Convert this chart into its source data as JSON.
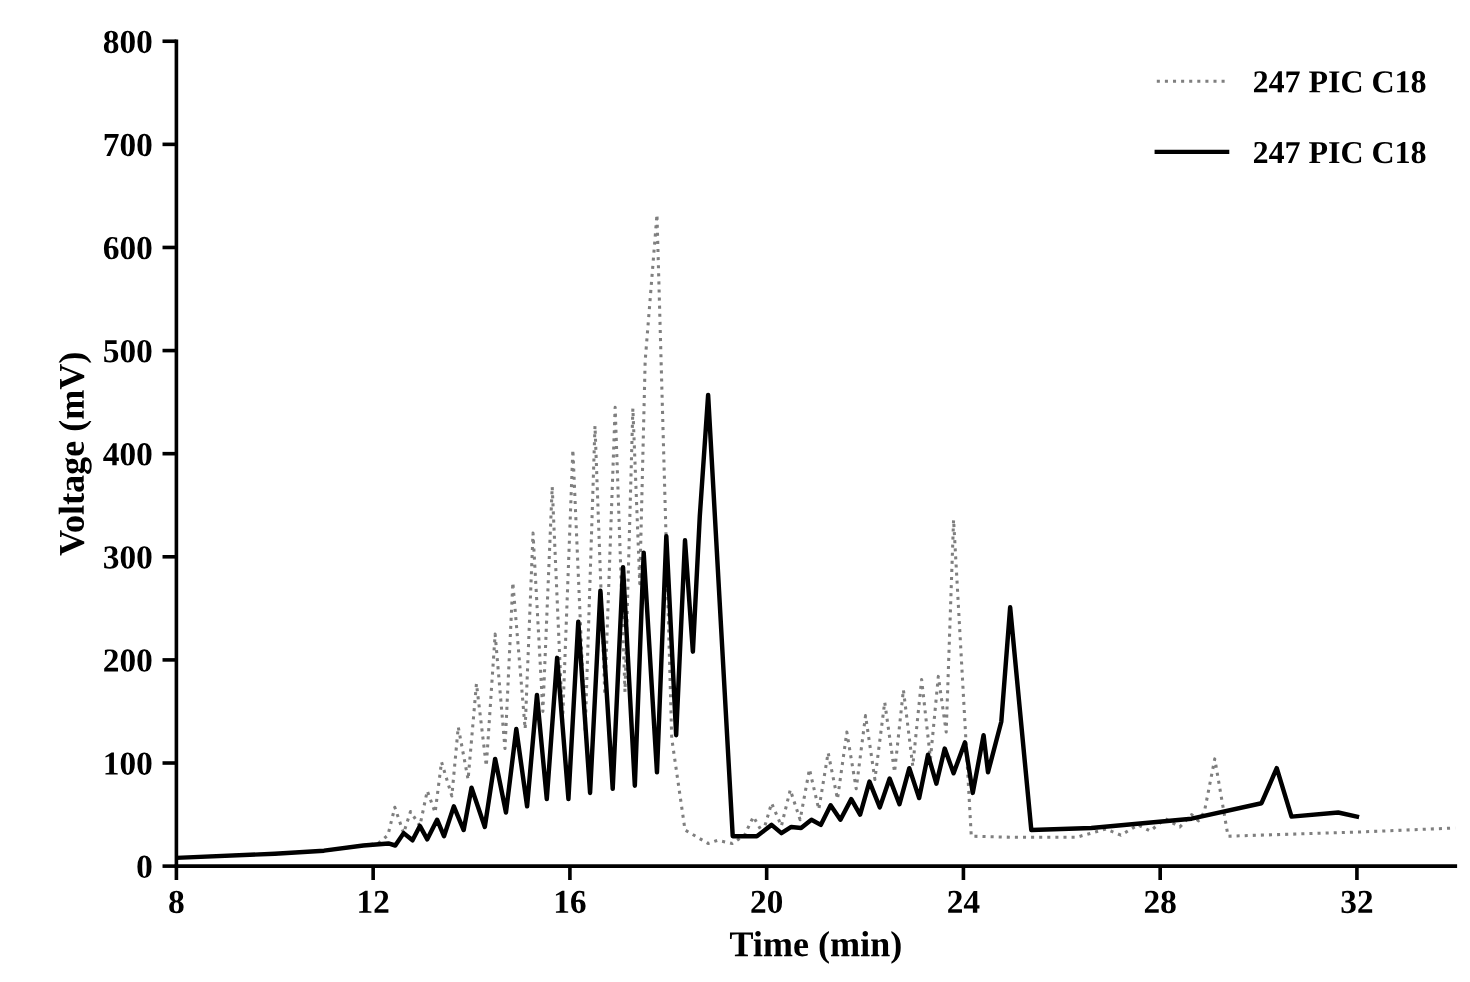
{
  "chart_data": {
    "type": "line",
    "xlabel": "Time (min)",
    "ylabel": "Voltage (mV)",
    "xlim": [
      8,
      34
    ],
    "ylim": [
      0,
      800
    ],
    "xticks": [
      8,
      12,
      16,
      20,
      24,
      28,
      32
    ],
    "yticks": [
      0,
      100,
      200,
      300,
      400,
      500,
      600,
      700,
      800
    ],
    "grid": false,
    "legend": "top right",
    "marker": "none",
    "series": [
      {
        "name": "247 PIC C18",
        "color": "#7f7f7f",
        "line_style": "dotted",
        "x": [
          8,
          10,
          11,
          11.8,
          12.1,
          12.3,
          12.44,
          12.62,
          12.76,
          12.95,
          13.1,
          13.26,
          13.39,
          13.6,
          13.73,
          13.93,
          14.1,
          14.3,
          14.48,
          14.68,
          14.84,
          15.09,
          15.25,
          15.45,
          15.64,
          15.85,
          16.06,
          16.31,
          16.51,
          16.71,
          16.92,
          17.12,
          17.28,
          17.42,
          17.53,
          17.77,
          18.07,
          18.34,
          18.81,
          19.0,
          19.3,
          19.55,
          19.73,
          19.92,
          20.1,
          20.3,
          20.48,
          20.68,
          20.87,
          21.06,
          21.25,
          21.44,
          21.63,
          21.82,
          22.01,
          22.2,
          22.4,
          22.6,
          22.78,
          22.97,
          23.15,
          23.33,
          23.49,
          23.65,
          23.8,
          24.16,
          25,
          26.3,
          26.9,
          27.2,
          27.55,
          27.8,
          28.1,
          28.4,
          28.64,
          28.78,
          28.9,
          29.11,
          29.38,
          30,
          32,
          34
        ],
        "values": [
          8,
          12,
          15,
          20,
          22,
          30,
          57,
          32,
          53,
          39,
          73,
          52,
          101,
          68,
          135,
          84,
          177,
          97,
          225,
          114,
          275,
          133,
          323,
          150,
          368,
          140,
          404,
          130,
          427,
          166,
          445,
          169,
          444,
          274,
          490,
          632,
          124,
          35,
          22,
          25,
          22,
          30,
          48,
          32,
          61,
          39,
          74,
          45,
          94,
          55,
          110,
          65,
          130,
          75,
          146,
          84,
          159,
          91,
          171,
          97,
          181,
          104,
          184,
          130,
          336,
          29,
          28,
          28,
          36,
          30,
          40,
          34,
          46,
          38,
          50,
          44,
          53,
          104,
          29,
          30,
          33,
          37
        ]
      },
      {
        "name": "247 PIC C18",
        "color": "#000000",
        "line_style": "solid",
        "x": [
          8,
          10,
          11,
          11.8,
          12.31,
          12.45,
          12.62,
          12.8,
          12.95,
          13.1,
          13.3,
          13.44,
          13.64,
          13.84,
          14.0,
          14.27,
          14.48,
          14.7,
          14.91,
          15.13,
          15.33,
          15.53,
          15.74,
          15.97,
          16.17,
          16.41,
          16.62,
          16.87,
          17.08,
          17.32,
          17.5,
          17.77,
          17.96,
          18.16,
          18.34,
          18.5,
          18.64,
          18.81,
          19.31,
          19.8,
          20.1,
          20.3,
          20.5,
          20.7,
          20.91,
          21.1,
          21.3,
          21.5,
          21.72,
          21.9,
          22.09,
          22.3,
          22.5,
          22.7,
          22.9,
          23.1,
          23.28,
          23.45,
          23.62,
          23.8,
          24.03,
          24.19,
          24.41,
          24.5,
          24.77,
          24.95,
          25.38,
          26.6,
          28.64,
          30.06,
          30.37,
          30.67,
          31.62,
          32.0
        ],
        "values": [
          8,
          12,
          15,
          20,
          22,
          20,
          32,
          25,
          39,
          26,
          45,
          29,
          58,
          35,
          76,
          38,
          104,
          52,
          133,
          58,
          166,
          65,
          202,
          65,
          237,
          71,
          267,
          75,
          290,
          78,
          304,
          91,
          320,
          127,
          316,
          208,
          339,
          457,
          29,
          29,
          40,
          32,
          38,
          37,
          45,
          40,
          59,
          45,
          65,
          50,
          82,
          57,
          85,
          60,
          95,
          66,
          108,
          80,
          114,
          90,
          120,
          71,
          127,
          91,
          140,
          251,
          35,
          37,
          46,
          61,
          95,
          48,
          52,
          48
        ]
      }
    ]
  }
}
